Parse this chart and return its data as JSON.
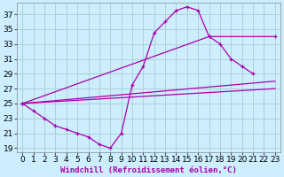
{
  "xlabel": "Windchill (Refroidissement éolien,°C)",
  "bg_color": "#cceeff",
  "grid_color": "#aacccc",
  "line_color": "#aa00aa",
  "xlim": [
    -0.5,
    23.5
  ],
  "ylim": [
    18.5,
    38.5
  ],
  "yticks": [
    19,
    21,
    23,
    25,
    27,
    29,
    31,
    33,
    35,
    37
  ],
  "xticks": [
    0,
    1,
    2,
    3,
    4,
    5,
    6,
    7,
    8,
    9,
    10,
    11,
    12,
    13,
    14,
    15,
    16,
    17,
    18,
    19,
    20,
    21,
    22,
    23
  ],
  "curve_upper_x": [
    0,
    1,
    2,
    3,
    4,
    5,
    6,
    7,
    8,
    9,
    10,
    11,
    12,
    13,
    14,
    15,
    16,
    17,
    18,
    19,
    20,
    21
  ],
  "curve_upper_y": [
    25.0,
    24.0,
    23.0,
    22.0,
    21.5,
    21.0,
    20.5,
    19.5,
    19.0,
    21.0,
    27.5,
    30.0,
    34.5,
    36.0,
    37.5,
    38.0,
    37.5,
    34.0,
    33.0,
    31.0,
    30.0,
    29.0
  ],
  "line1_x": [
    0,
    17,
    23
  ],
  "line1_y": [
    25.0,
    34.0,
    34.0
  ],
  "line2_x": [
    0,
    23
  ],
  "line2_y": [
    25.0,
    28.0
  ],
  "line3_x": [
    0,
    23
  ],
  "line3_y": [
    25.0,
    27.0
  ],
  "font_size": 6.5,
  "tick_font_size": 6.5,
  "lw": 0.9
}
